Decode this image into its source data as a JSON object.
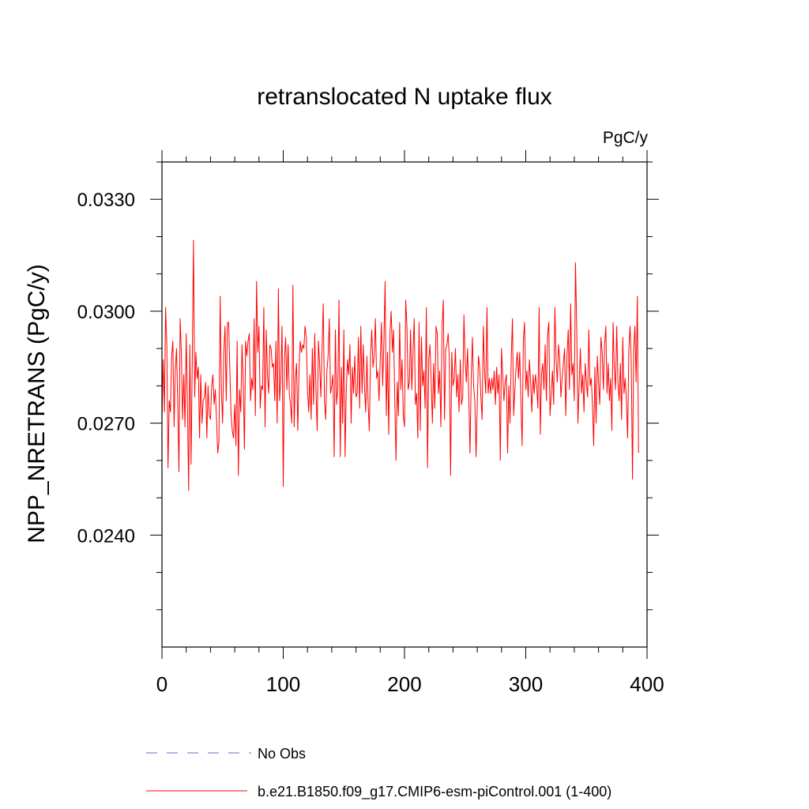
{
  "chart_data": {
    "type": "line",
    "title": "retranslocated N uptake flux",
    "units": "PgC/y",
    "xlabel": "",
    "ylabel": "NPP_NRETRANS  (PgC/y)",
    "xlim": [
      0,
      400
    ],
    "ylim": [
      0.021,
      0.034
    ],
    "xticks": [
      0,
      100,
      200,
      300,
      400
    ],
    "xtick_labels": [
      "0",
      "100",
      "200",
      "300",
      "400"
    ],
    "yticks": [
      0.024,
      0.027,
      0.03,
      0.033
    ],
    "ytick_labels": [
      "0.0240",
      "0.0270",
      "0.0300",
      "0.0330"
    ],
    "grid": false,
    "legend_position": "bottom",
    "series": [
      {
        "name": "No Obs",
        "label": "No Obs",
        "color": "#6a6acd",
        "style": "dashed",
        "values": []
      },
      {
        "name": "b.e21.B1850.f09_g17.CMIP6-esm-piControl.001 (1-400)",
        "label": "b.e21.B1850.f09_g17.CMIP6-esm-piControl.001 (1-400)",
        "color": "#ff0000",
        "style": "solid",
        "x_start": 0,
        "x_step": 1,
        "values": [
          0.0271,
          0.0287,
          0.0273,
          0.0301,
          0.0291,
          0.0258,
          0.0276,
          0.0273,
          0.0288,
          0.0292,
          0.0269,
          0.0284,
          0.029,
          0.0276,
          0.0257,
          0.0298,
          0.0289,
          0.0271,
          0.0283,
          0.0269,
          0.0294,
          0.0275,
          0.0252,
          0.0291,
          0.0259,
          0.0287,
          0.0319,
          0.0277,
          0.0289,
          0.0282,
          0.0285,
          0.0266,
          0.0283,
          0.027,
          0.0276,
          0.0277,
          0.0281,
          0.0266,
          0.028,
          0.0272,
          0.0271,
          0.028,
          0.0283,
          0.0275,
          0.0279,
          0.0271,
          0.0262,
          0.0265,
          0.0304,
          0.0279,
          0.027,
          0.0289,
          0.0296,
          0.0276,
          0.0297,
          0.0297,
          0.0284,
          0.0272,
          0.0268,
          0.0266,
          0.0275,
          0.0264,
          0.0292,
          0.0256,
          0.0279,
          0.0273,
          0.0291,
          0.0281,
          0.0263,
          0.0292,
          0.0288,
          0.0292,
          0.0294,
          0.0276,
          0.0282,
          0.0279,
          0.0298,
          0.0272,
          0.0308,
          0.0289,
          0.0296,
          0.0274,
          0.028,
          0.0279,
          0.0301,
          0.0269,
          0.0295,
          0.0283,
          0.0278,
          0.0291,
          0.029,
          0.0285,
          0.0286,
          0.0276,
          0.0292,
          0.027,
          0.0306,
          0.0276,
          0.0282,
          0.0296,
          0.0253,
          0.0287,
          0.0293,
          0.0279,
          0.0291,
          0.0278,
          0.0275,
          0.027,
          0.0307,
          0.0269,
          0.0282,
          0.0286,
          0.0268,
          0.0284,
          0.0292,
          0.0289,
          0.0291,
          0.029,
          0.0296,
          0.0293,
          0.0279,
          0.0273,
          0.0283,
          0.0271,
          0.029,
          0.0275,
          0.0294,
          0.0279,
          0.0268,
          0.0292,
          0.0286,
          0.0277,
          0.029,
          0.0302,
          0.0276,
          0.0271,
          0.0284,
          0.0288,
          0.0298,
          0.0278,
          0.028,
          0.0283,
          0.0261,
          0.0295,
          0.0275,
          0.028,
          0.0303,
          0.0261,
          0.0285,
          0.027,
          0.0295,
          0.0261,
          0.0279,
          0.0287,
          0.0283,
          0.0291,
          0.027,
          0.0285,
          0.0278,
          0.0288,
          0.0277,
          0.0278,
          0.0293,
          0.0274,
          0.0296,
          0.0278,
          0.0291,
          0.028,
          0.0273,
          0.0288,
          0.0275,
          0.0268,
          0.0288,
          0.0295,
          0.0285,
          0.0288,
          0.0298,
          0.0282,
          0.0284,
          0.0276,
          0.0287,
          0.0297,
          0.028,
          0.0292,
          0.0308,
          0.0272,
          0.0289,
          0.0267,
          0.0294,
          0.03,
          0.0289,
          0.0295,
          0.0276,
          0.026,
          0.0281,
          0.0272,
          0.0297,
          0.0279,
          0.0287,
          0.0272,
          0.0269,
          0.0303,
          0.0296,
          0.0279,
          0.0281,
          0.0295,
          0.0279,
          0.0289,
          0.0298,
          0.0275,
          0.0278,
          0.0266,
          0.0297,
          0.0268,
          0.0293,
          0.028,
          0.0284,
          0.0274,
          0.0301,
          0.0258,
          0.0287,
          0.0291,
          0.0281,
          0.027,
          0.0286,
          0.0274,
          0.0296,
          0.0294,
          0.0278,
          0.0284,
          0.0269,
          0.0296,
          0.0303,
          0.0271,
          0.029,
          0.0291,
          0.0294,
          0.0287,
          0.0256,
          0.0289,
          0.028,
          0.0282,
          0.029,
          0.0277,
          0.0283,
          0.0273,
          0.0287,
          0.0275,
          0.0277,
          0.0299,
          0.0287,
          0.0281,
          0.029,
          0.0277,
          0.0262,
          0.0282,
          0.0293,
          0.028,
          0.0276,
          0.0261,
          0.0275,
          0.0288,
          0.0285,
          0.0277,
          0.0271,
          0.0296,
          0.0284,
          0.0278,
          0.0301,
          0.0278,
          0.0282,
          0.0278,
          0.0282,
          0.0279,
          0.0284,
          0.0275,
          0.0285,
          0.0278,
          0.0283,
          0.026,
          0.029,
          0.0283,
          0.0276,
          0.0281,
          0.0283,
          0.0262,
          0.028,
          0.027,
          0.0287,
          0.0298,
          0.0272,
          0.0279,
          0.0285,
          0.0289,
          0.0282,
          0.0289,
          0.0276,
          0.0264,
          0.0292,
          0.0297,
          0.0279,
          0.0284,
          0.0277,
          0.0287,
          0.0281,
          0.0273,
          0.0283,
          0.0278,
          0.0283,
          0.028,
          0.0274,
          0.0301,
          0.0267,
          0.0283,
          0.0286,
          0.0279,
          0.0291,
          0.0276,
          0.0294,
          0.0297,
          0.0272,
          0.0278,
          0.0284,
          0.0275,
          0.0301,
          0.0287,
          0.0281,
          0.0291,
          0.0287,
          0.0277,
          0.0282,
          0.0286,
          0.029,
          0.0272,
          0.0288,
          0.0295,
          0.0279,
          0.0302,
          0.0283,
          0.0286,
          0.0276,
          0.0313,
          0.0296,
          0.027,
          0.028,
          0.029,
          0.0278,
          0.0283,
          0.0273,
          0.0286,
          0.0281,
          0.0277,
          0.0295,
          0.028,
          0.0282,
          0.0275,
          0.0264,
          0.0285,
          0.027,
          0.0288,
          0.0281,
          0.0275,
          0.0293,
          0.0289,
          0.0279,
          0.0291,
          0.0296,
          0.0278,
          0.0286,
          0.0276,
          0.0282,
          0.0268,
          0.0297,
          0.0285,
          0.0279,
          0.0296,
          0.0281,
          0.0276,
          0.0286,
          0.0271,
          0.0293,
          0.0278,
          0.0282,
          0.0276,
          0.0266,
          0.029,
          0.0296,
          0.0286,
          0.0255,
          0.029,
          0.0296,
          0.0281,
          0.0304,
          0.0262
        ]
      }
    ]
  }
}
